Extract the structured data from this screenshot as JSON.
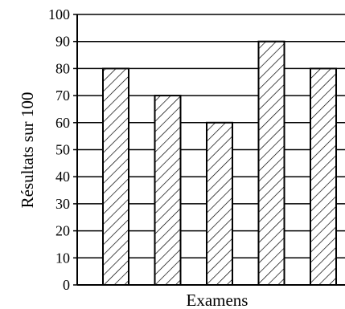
{
  "chart_data": {
    "type": "bar",
    "title": "",
    "xlabel": "Examens",
    "ylabel": "Résultats sur 100",
    "categories": [
      "",
      "",
      "",
      "",
      ""
    ],
    "values": [
      80,
      70,
      60,
      90,
      80
    ],
    "ylim": [
      0,
      100
    ],
    "yticks": [
      0,
      10,
      20,
      30,
      40,
      50,
      60,
      70,
      80,
      90,
      100
    ],
    "grid": true,
    "bar_fill": "diagonal-hatch",
    "colors": {
      "bar_stroke": "#000000",
      "hatch": "#000000",
      "grid": "#000000",
      "background": "#ffffff"
    }
  }
}
